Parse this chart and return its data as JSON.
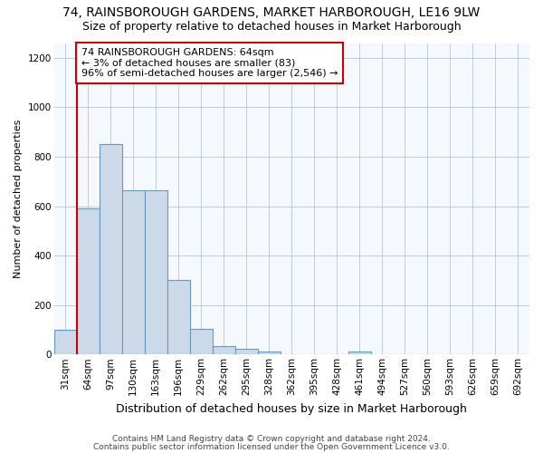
{
  "title": "74, RAINSBOROUGH GARDENS, MARKET HARBOROUGH, LE16 9LW",
  "subtitle": "Size of property relative to detached houses in Market Harborough",
  "xlabel": "Distribution of detached houses by size in Market Harborough",
  "ylabel": "Number of detached properties",
  "categories": [
    "31sqm",
    "64sqm",
    "97sqm",
    "130sqm",
    "163sqm",
    "196sqm",
    "229sqm",
    "262sqm",
    "295sqm",
    "328sqm",
    "362sqm",
    "395sqm",
    "428sqm",
    "461sqm",
    "494sqm",
    "527sqm",
    "560sqm",
    "593sqm",
    "626sqm",
    "659sqm",
    "692sqm"
  ],
  "values": [
    100,
    590,
    850,
    665,
    665,
    300,
    105,
    33,
    23,
    13,
    0,
    0,
    0,
    13,
    0,
    0,
    0,
    0,
    0,
    0,
    0
  ],
  "bar_color": "#ccd9e8",
  "bar_edge_color": "#6699bb",
  "red_line_index": 1,
  "red_line_color": "#cc0000",
  "ylim": [
    0,
    1260
  ],
  "yticks": [
    0,
    200,
    400,
    600,
    800,
    1000,
    1200
  ],
  "annotation_text": "74 RAINSBOROUGH GARDENS: 64sqm\n← 3% of detached houses are smaller (83)\n96% of semi-detached houses are larger (2,546) →",
  "annotation_box_facecolor": "#ffffff",
  "annotation_box_edgecolor": "#cc0000",
  "footer_line1": "Contains HM Land Registry data © Crown copyright and database right 2024.",
  "footer_line2": "Contains public sector information licensed under the Open Government Licence v3.0.",
  "title_fontsize": 10,
  "subtitle_fontsize": 9,
  "xlabel_fontsize": 9,
  "ylabel_fontsize": 8,
  "tick_fontsize": 7.5,
  "annotation_fontsize": 8,
  "footer_fontsize": 6.5,
  "background_color": "#ffffff",
  "plot_background_color": "#f5f8fc",
  "grid_color": "#c0ccd8"
}
